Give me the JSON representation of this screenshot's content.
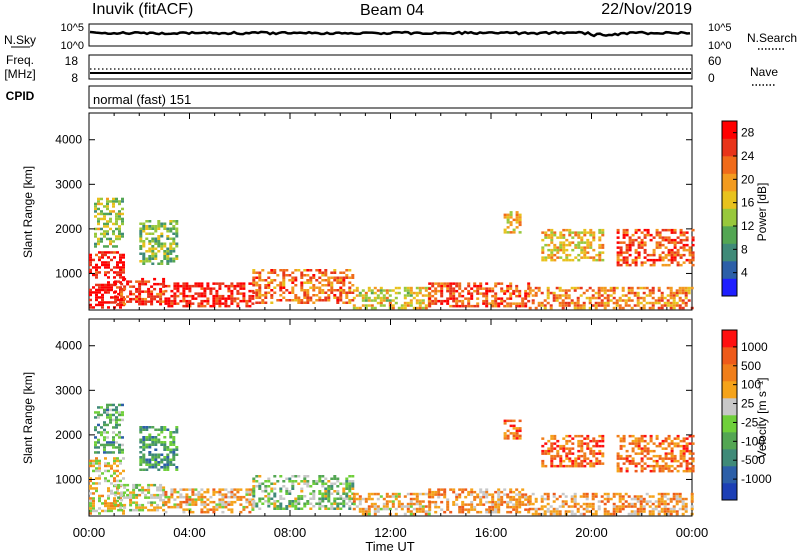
{
  "header": {
    "station": "Inuvik (fitACF)",
    "beam": "Beam 04",
    "date": "22/Nov/2019"
  },
  "noise_panel": {
    "left_label": "N.Sky",
    "right_label": "N.Search",
    "left_ticks": [
      "10^5",
      "10^0"
    ],
    "right_ticks": [
      "10^5",
      "10^0"
    ]
  },
  "freq_panel": {
    "left_label_line1": "Freq.",
    "left_label_line2": "[MHz]",
    "right_label": "Nave",
    "left_ticks": [
      "18",
      "8"
    ],
    "right_ticks": [
      "60",
      "0"
    ]
  },
  "cpid_panel": {
    "label": "CPID",
    "text": "normal (fast) 151"
  },
  "colors": {
    "power_scale": [
      "#1f1fff",
      "#2c5fa8",
      "#3f8a78",
      "#53a653",
      "#98c83c",
      "#e8c21d",
      "#f39b1f",
      "#f06b1a",
      "#e8341a",
      "#ff0000"
    ],
    "velocity_scale": [
      "#1c3fb5",
      "#2c5fa8",
      "#3f8a78",
      "#53a653",
      "#6fcf3a",
      "#c8c8c8",
      "#f5a31a",
      "#f07e1a",
      "#ee5a1a",
      "#ff1010"
    ],
    "noise_line": "#000000"
  },
  "chart_data": [
    {
      "type": "heatmap",
      "xlabel": "Time UT",
      "ylabel": "Slant Range [km]",
      "x_tick_labels": [
        "00:00",
        "04:00",
        "08:00",
        "12:00",
        "16:00",
        "20:00",
        "00:00"
      ],
      "x_ticks_hours": [
        0,
        4,
        8,
        12,
        16,
        20,
        24
      ],
      "xlim": [
        0,
        24
      ],
      "ylim": [
        180,
        4600
      ],
      "y_ticks": [
        1000,
        2000,
        3000,
        4000
      ],
      "colorbar": {
        "label": "Power [dB]",
        "ticks": [
          4,
          8,
          12,
          16,
          20,
          24,
          28
        ],
        "range": [
          0,
          30
        ]
      },
      "echo_regions": [
        {
          "t0": 0.0,
          "t1": 1.4,
          "r0": 250,
          "r1": 1500,
          "level": 0.95
        },
        {
          "t0": 0.2,
          "t1": 1.3,
          "r0": 1600,
          "r1": 2700,
          "level": 0.45
        },
        {
          "t0": 1.0,
          "t1": 3.0,
          "r0": 300,
          "r1": 900,
          "level": 0.85
        },
        {
          "t0": 2.0,
          "t1": 3.5,
          "r0": 1200,
          "r1": 2200,
          "level": 0.4
        },
        {
          "t0": 3.0,
          "t1": 6.5,
          "r0": 250,
          "r1": 800,
          "level": 0.9
        },
        {
          "t0": 6.5,
          "t1": 10.5,
          "r0": 350,
          "r1": 1100,
          "level": 0.75
        },
        {
          "t0": 10.5,
          "t1": 13.5,
          "r0": 250,
          "r1": 700,
          "level": 0.55
        },
        {
          "t0": 13.5,
          "t1": 17.5,
          "r0": 250,
          "r1": 800,
          "level": 0.8
        },
        {
          "t0": 17.5,
          "t1": 24.0,
          "r0": 250,
          "r1": 700,
          "level": 0.7
        },
        {
          "t0": 18.0,
          "t1": 20.5,
          "r0": 1300,
          "r1": 2000,
          "level": 0.6
        },
        {
          "t0": 21.0,
          "t1": 24.0,
          "r0": 1200,
          "r1": 2000,
          "level": 0.8
        },
        {
          "t0": 16.5,
          "t1": 17.2,
          "r0": 1900,
          "r1": 2400,
          "level": 0.6
        }
      ]
    },
    {
      "type": "heatmap",
      "xlabel": "Time UT",
      "ylabel": "Slant Range [km]",
      "x_tick_labels": [
        "00:00",
        "04:00",
        "08:00",
        "12:00",
        "16:00",
        "20:00",
        "00:00"
      ],
      "x_ticks_hours": [
        0,
        4,
        8,
        12,
        16,
        20,
        24
      ],
      "xlim": [
        0,
        24
      ],
      "ylim": [
        180,
        4600
      ],
      "y_ticks": [
        1000,
        2000,
        3000,
        4000
      ],
      "colorbar": {
        "label": "Velocity [m s⁻¹]",
        "ticks": [
          "1000",
          "500",
          "100",
          "25",
          "-25",
          "-100",
          "-500",
          "-1000"
        ]
      },
      "echo_regions": [
        {
          "t0": 0.0,
          "t1": 1.4,
          "r0": 250,
          "r1": 1500,
          "level": 0.6
        },
        {
          "t0": 0.2,
          "t1": 1.3,
          "r0": 1600,
          "r1": 2700,
          "level": 0.35
        },
        {
          "t0": 1.0,
          "t1": 3.0,
          "r0": 300,
          "r1": 900,
          "level": 0.55
        },
        {
          "t0": 2.0,
          "t1": 3.5,
          "r0": 1200,
          "r1": 2200,
          "level": 0.3
        },
        {
          "t0": 3.0,
          "t1": 6.5,
          "r0": 250,
          "r1": 800,
          "level": 0.65
        },
        {
          "t0": 6.5,
          "t1": 10.5,
          "r0": 350,
          "r1": 1100,
          "level": 0.45
        },
        {
          "t0": 10.5,
          "t1": 13.5,
          "r0": 250,
          "r1": 700,
          "level": 0.65
        },
        {
          "t0": 13.5,
          "t1": 17.5,
          "r0": 250,
          "r1": 800,
          "level": 0.7
        },
        {
          "t0": 17.5,
          "t1": 24.0,
          "r0": 250,
          "r1": 700,
          "level": 0.7
        },
        {
          "t0": 18.0,
          "t1": 20.5,
          "r0": 1300,
          "r1": 2000,
          "level": 0.82
        },
        {
          "t0": 21.0,
          "t1": 24.0,
          "r0": 1200,
          "r1": 2000,
          "level": 0.78
        },
        {
          "t0": 16.5,
          "t1": 17.2,
          "r0": 1900,
          "r1": 2400,
          "level": 0.8
        }
      ]
    }
  ]
}
